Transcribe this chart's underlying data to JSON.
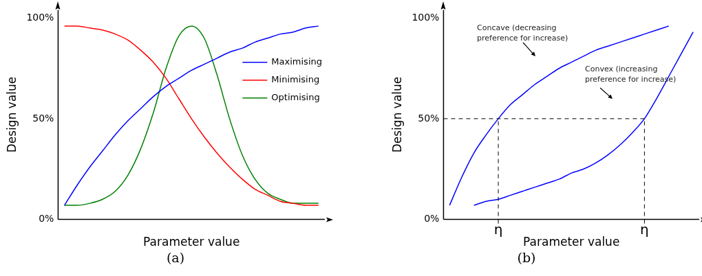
{
  "chart_data": [
    {
      "type": "line",
      "xlabel": "Parameter value",
      "ylabel": "Design value",
      "categories": [
        null,
        null,
        null,
        null,
        null,
        null,
        null,
        null,
        null,
        null,
        null,
        null,
        null,
        null,
        null,
        null,
        null,
        null,
        null,
        null,
        null
      ],
      "series": [
        {
          "name": "Maximising",
          "color": "#0000ff",
          "values": [
            7,
            17,
            26,
            34,
            42,
            49,
            55,
            61,
            66,
            70,
            74,
            77,
            80,
            83,
            85,
            88,
            90,
            92,
            93,
            95,
            96
          ]
        },
        {
          "name": "Minimising",
          "color": "#ff0000",
          "values": [
            96,
            96,
            95,
            94,
            92,
            89,
            84,
            78,
            70,
            60,
            50,
            41,
            33,
            26,
            20,
            15,
            12,
            9,
            8,
            7,
            7
          ]
        },
        {
          "name": "Optimising",
          "color": "#008000",
          "values": [
            7,
            7,
            8,
            10,
            14,
            22,
            35,
            53,
            75,
            91,
            96,
            90,
            72,
            50,
            32,
            20,
            13,
            10,
            8,
            8,
            8
          ]
        }
      ],
      "ylim": [
        0,
        104
      ],
      "yticks": [
        {
          "value": 0,
          "label": "0%"
        },
        {
          "value": 50,
          "label": "50%"
        },
        {
          "value": 100,
          "label": "100%"
        }
      ],
      "marker": "none",
      "legend": "right",
      "grid": false,
      "annotations": [
        "(a)"
      ]
    },
    {
      "type": "line",
      "xlabel": "Parameter value",
      "ylabel": "Design value",
      "categories": [
        null,
        null,
        null,
        null,
        "η",
        null,
        null,
        null,
        null,
        null,
        null,
        null,
        null,
        null,
        null,
        null,
        "η",
        null,
        null,
        null,
        null
      ],
      "series": [
        {
          "color": "#0000ff",
          "values": [
            7,
            21,
            33,
            42,
            50,
            57,
            62,
            67,
            71,
            75,
            78,
            81,
            84,
            86,
            88,
            90,
            92,
            94,
            96,
            null,
            null
          ]
        },
        {
          "color": "#0000ff",
          "values": [
            null,
            null,
            7,
            9,
            10,
            12,
            14,
            16,
            18,
            20,
            23,
            25,
            28,
            32,
            37,
            43,
            50,
            60,
            71,
            82,
            93
          ]
        }
      ],
      "ylim": [
        0,
        104
      ],
      "yticks": [
        {
          "value": 0,
          "label": "0%"
        },
        {
          "value": 50,
          "label": "50%"
        },
        {
          "value": 100,
          "label": "100%"
        }
      ],
      "marker": "none",
      "legend": false,
      "ref_lines": [
        {
          "axis": "y",
          "value": 50,
          "line_style": "dashed"
        },
        {
          "axis": "x",
          "value": "η",
          "line_style": "dashed"
        }
      ],
      "annotations": [
        "Concave (decreasing preference for increase)",
        "Convex (increasing preference for increase)",
        "(b)"
      ]
    }
  ]
}
